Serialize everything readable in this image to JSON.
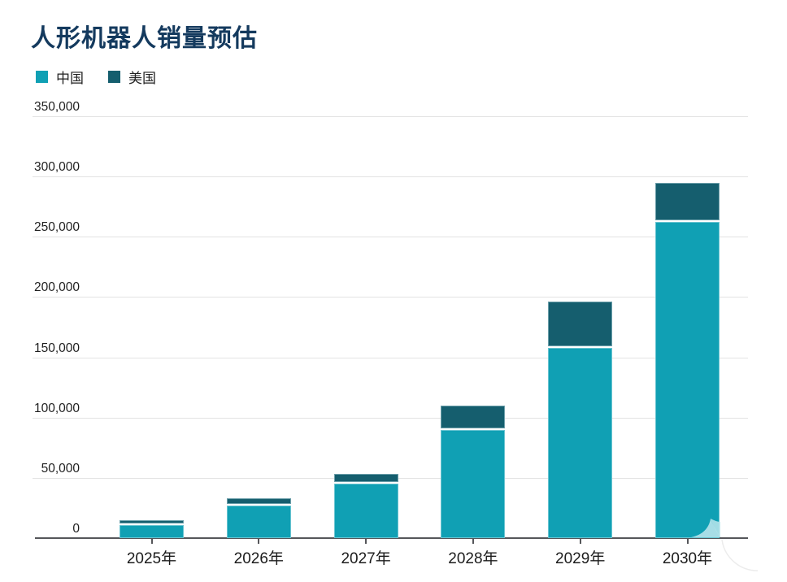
{
  "title": "人形机器人销量预估",
  "legend": [
    {
      "label": "中国",
      "color": "#10a0b4"
    },
    {
      "label": "美国",
      "color": "#155e6e"
    }
  ],
  "colors": {
    "title": "#143a5e",
    "china_bar": "#10a0b4",
    "usa_bar": "#155e6e",
    "gridline": "#e3e3e3",
    "axis": "#55565a",
    "watermark": "#a7dde6"
  },
  "chart_data": {
    "type": "bar",
    "stacked": true,
    "title": "人形机器人销量预估",
    "categories": [
      "2025年",
      "2026年",
      "2027年",
      "2028年",
      "2029年",
      "2030年"
    ],
    "series": [
      {
        "name": "中国",
        "color": "#10a0b4",
        "values": [
          11000,
          27000,
          45000,
          90000,
          158000,
          262000
        ]
      },
      {
        "name": "美国",
        "color": "#155e6e",
        "values": [
          4000,
          6000,
          8000,
          20000,
          38000,
          33000
        ]
      }
    ],
    "totals": [
      15000,
      33000,
      53000,
      110000,
      196000,
      295000
    ],
    "xlabel": "",
    "ylabel": "",
    "ylim": [
      0,
      350000
    ],
    "yticks": [
      0,
      50000,
      100000,
      150000,
      200000,
      250000,
      300000,
      350000
    ],
    "ytick_labels": [
      "0",
      "50,000",
      "100,000",
      "150,000",
      "200,000",
      "250,000",
      "300,000",
      "350,000"
    ],
    "grid": "horizontal",
    "legend_position": "top-left"
  }
}
